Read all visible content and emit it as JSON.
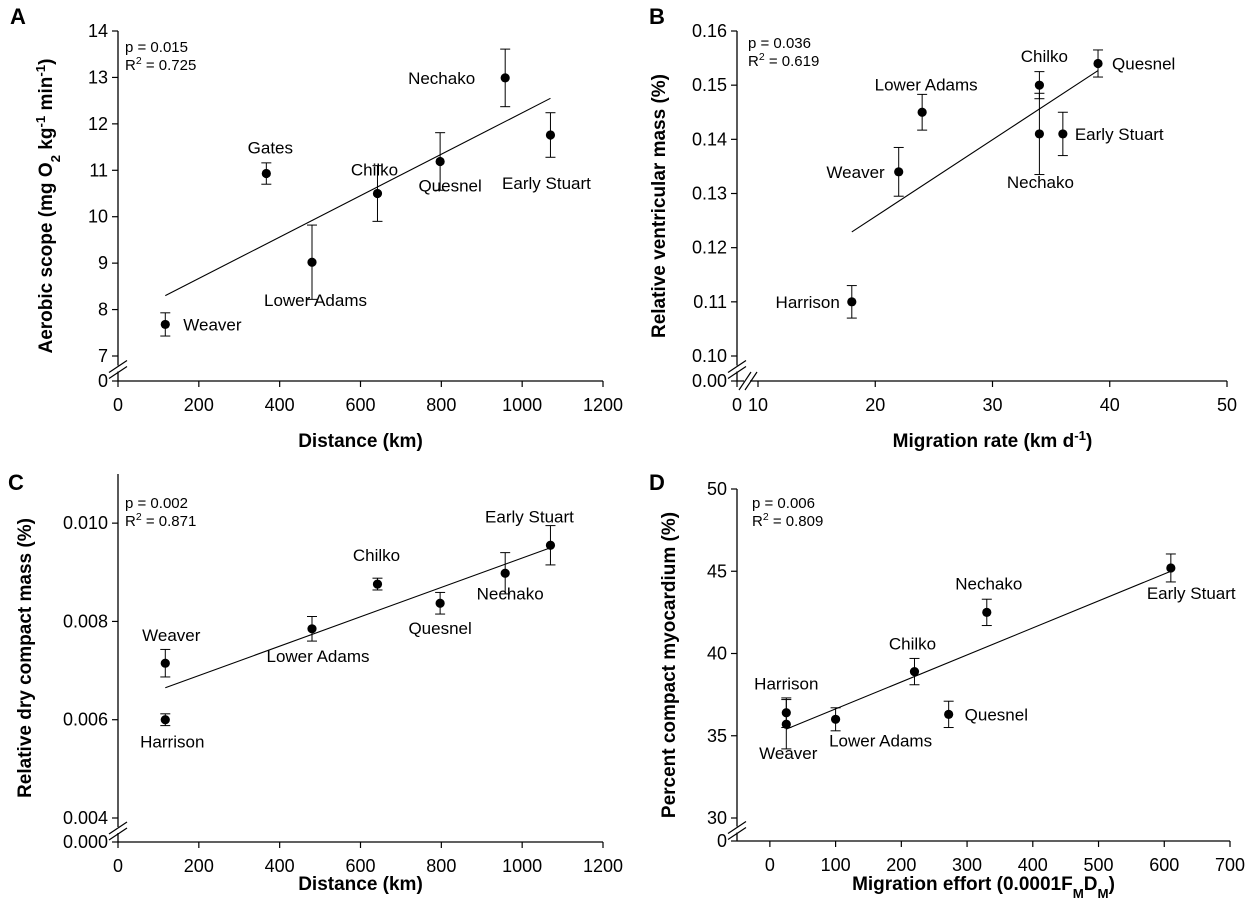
{
  "chart_data": [
    {
      "type": "scatter",
      "panel": "A",
      "xlabel": "Distance (km)",
      "ylabel_parts": [
        "Aerobic scope (mg O",
        "2",
        " kg",
        "-1",
        " min",
        "-1",
        ")"
      ],
      "stats": {
        "p": "p = 0.015",
        "r2_prefix": "R",
        "r2_sup": "2",
        "r2_rest": " = 0.725"
      },
      "xlim": [
        0,
        1200
      ],
      "xticks": [
        0,
        200,
        400,
        600,
        800,
        1000,
        1200
      ],
      "xtick_labels": [
        "0",
        "200",
        "400",
        "600",
        "800",
        "1000",
        "1200"
      ],
      "ylim_upper": [
        7,
        14
      ],
      "yticks": [
        7,
        8,
        9,
        10,
        11,
        12,
        13,
        14
      ],
      "ytick_labels": [
        "7",
        "8",
        "9",
        "10",
        "11",
        "12",
        "13",
        "14"
      ],
      "y_break_label": "0",
      "points": [
        {
          "name": "Weaver",
          "x": 117,
          "y": 7.68,
          "err": 0.25
        },
        {
          "name": "Gates",
          "x": 367,
          "y": 10.93,
          "err": 0.23
        },
        {
          "name": "Lower Adams",
          "x": 480,
          "y": 9.02,
          "err": 0.8
        },
        {
          "name": "Chilko",
          "x": 642,
          "y": 10.5,
          "err": 0.6
        },
        {
          "name": "Quesnel",
          "x": 797,
          "y": 11.19,
          "err": 0.62
        },
        {
          "name": "Nechako",
          "x": 958,
          "y": 12.99,
          "err": 0.62
        },
        {
          "name": "Early Stuart",
          "x": 1070,
          "y": 11.76,
          "err": 0.48
        }
      ],
      "fit": {
        "x": [
          117,
          1070
        ],
        "y": [
          8.3,
          12.55
        ]
      }
    },
    {
      "type": "scatter",
      "panel": "B",
      "xlabel_parts": [
        "Migration rate (km d",
        "-1",
        ")"
      ],
      "ylabel": "Relative ventricular mass (%)",
      "stats": {
        "p": "p = 0.036",
        "r2_prefix": "R",
        "r2_sup": "2",
        "r2_rest": " = 0.619"
      },
      "xlim": [
        10,
        50
      ],
      "xticks": [
        10,
        20,
        30,
        40,
        50
      ],
      "xtick_labels": [
        "10",
        "20",
        "30",
        "40",
        "50"
      ],
      "x_break_label": "0",
      "ylim_upper": [
        0.1,
        0.16
      ],
      "yticks": [
        0.1,
        0.11,
        0.12,
        0.13,
        0.14,
        0.15,
        0.16
      ],
      "ytick_labels": [
        "0.10",
        "0.11",
        "0.12",
        "0.13",
        "0.14",
        "0.15",
        "0.16"
      ],
      "y_break_label": "0.00",
      "points": [
        {
          "name": "Harrison",
          "x": 18,
          "y": 0.11,
          "err": 0.003
        },
        {
          "name": "Weaver",
          "x": 22,
          "y": 0.134,
          "err": 0.0045
        },
        {
          "name": "Lower Adams",
          "x": 24,
          "y": 0.145,
          "err": 0.0033
        },
        {
          "name": "Chilko",
          "x": 34,
          "y": 0.15,
          "err": 0.0025
        },
        {
          "name": "Nechako",
          "x": 34,
          "y": 0.141,
          "err": 0.0075
        },
        {
          "name": "Early Stuart",
          "x": 36,
          "y": 0.141,
          "err": 0.004
        },
        {
          "name": "Quesnel",
          "x": 39,
          "y": 0.154,
          "err": 0.0025
        }
      ],
      "fit": {
        "x": [
          18,
          39
        ],
        "y": [
          0.1229,
          0.1527
        ]
      }
    },
    {
      "type": "scatter",
      "panel": "C",
      "xlabel": "Distance (km)",
      "ylabel": "Relative dry compact mass (%)",
      "stats": {
        "p": "p = 0.002",
        "r2_prefix": "R",
        "r2_sup": "2",
        "r2_rest": " = 0.871"
      },
      "xlim": [
        0,
        1200
      ],
      "xticks": [
        0,
        200,
        400,
        600,
        800,
        1000,
        1200
      ],
      "xtick_labels": [
        "0",
        "200",
        "400",
        "600",
        "800",
        "1000",
        "1200"
      ],
      "ylim_upper": [
        0.004,
        0.011
      ],
      "yticks": [
        0.004,
        0.006,
        0.008,
        0.01
      ],
      "ytick_labels": [
        "0.004",
        "0.006",
        "0.008",
        "0.010"
      ],
      "y_break_label": "0.000",
      "points": [
        {
          "name": "Weaver",
          "x": 117,
          "y": 0.00715,
          "err": 0.00028
        },
        {
          "name": "Harrison",
          "x": 117,
          "y": 0.006,
          "err": 0.00012
        },
        {
          "name": "Lower Adams",
          "x": 480,
          "y": 0.00785,
          "err": 0.00025
        },
        {
          "name": "Chilko",
          "x": 642,
          "y": 0.00876,
          "err": 0.00012
        },
        {
          "name": "Quesnel",
          "x": 797,
          "y": 0.00837,
          "err": 0.00022
        },
        {
          "name": "Nechako",
          "x": 958,
          "y": 0.00898,
          "err": 0.00042
        },
        {
          "name": "Early Stuart",
          "x": 1070,
          "y": 0.00955,
          "err": 0.0004
        }
      ],
      "fit": {
        "x": [
          117,
          1070
        ],
        "y": [
          0.00665,
          0.0095
        ]
      }
    },
    {
      "type": "scatter",
      "panel": "D",
      "xlabel_parts": [
        "Migration effort (0.0001F",
        "M",
        "D",
        "M",
        ")"
      ],
      "ylabel": "Percent compact myocardium (%)",
      "stats": {
        "p": "p = 0.006",
        "r2_prefix": "R",
        "r2_sup": "2",
        "r2_rest": " = 0.809"
      },
      "xlim": [
        -50,
        700
      ],
      "xticks": [
        0,
        100,
        200,
        300,
        400,
        500,
        600,
        700
      ],
      "xtick_labels": [
        "0",
        "100",
        "200",
        "300",
        "400",
        "500",
        "600",
        "700"
      ],
      "ylim_upper": [
        30,
        50
      ],
      "yticks": [
        30,
        35,
        40,
        45,
        50
      ],
      "ytick_labels": [
        "30",
        "35",
        "40",
        "45",
        "50"
      ],
      "y_break_label": "0",
      "points": [
        {
          "name": "Harrison",
          "x": 25,
          "y": 36.4,
          "err": 0.9
        },
        {
          "name": "Weaver",
          "x": 25,
          "y": 35.7,
          "err": 1.5
        },
        {
          "name": "Lower Adams",
          "x": 100,
          "y": 36.0,
          "err": 0.7
        },
        {
          "name": "Chilko",
          "x": 220,
          "y": 38.9,
          "err": 0.8
        },
        {
          "name": "Quesnel",
          "x": 272,
          "y": 36.3,
          "err": 0.8
        },
        {
          "name": "Nechako",
          "x": 330,
          "y": 42.5,
          "err": 0.8
        },
        {
          "name": "Early Stuart",
          "x": 610,
          "y": 45.2,
          "err": 0.85
        }
      ],
      "fit": {
        "x": [
          25,
          610
        ],
        "y": [
          35.4,
          45.0
        ]
      }
    }
  ]
}
